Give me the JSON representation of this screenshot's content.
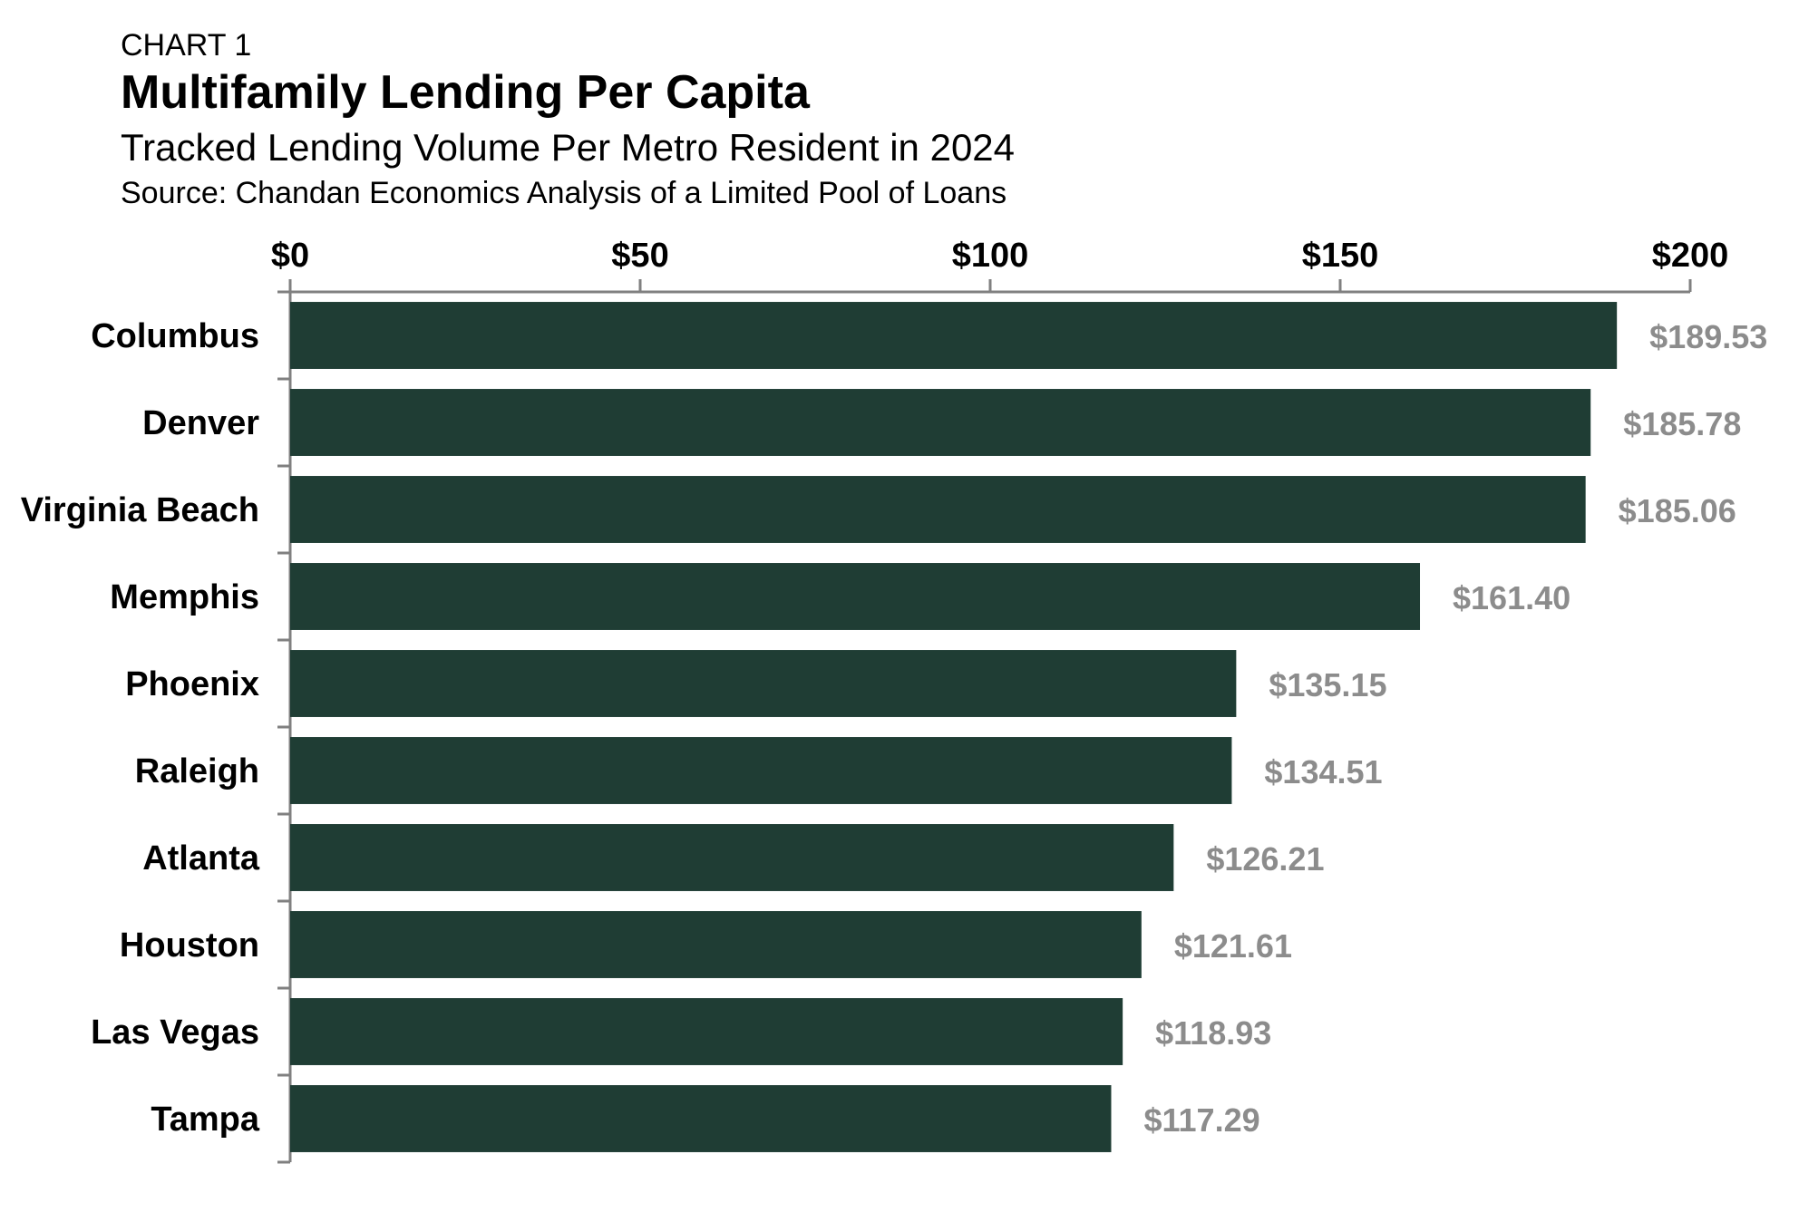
{
  "chart_label": "CHART 1",
  "colors": {
    "bar": "#1f3d34",
    "value_label": "#8c8c8c",
    "axis": "#808080"
  },
  "chart_data": {
    "type": "bar",
    "orientation": "horizontal",
    "title": "Multifamily Lending Per Capita",
    "subtitle": "Tracked Lending Volume Per Metro Resident in 2024",
    "source": "Source: Chandan Economics Analysis of a Limited Pool of Loans",
    "categories": [
      "Columbus",
      "Denver",
      "Virginia Beach",
      "Memphis",
      "Phoenix",
      "Raleigh",
      "Atlanta",
      "Houston",
      "Las Vegas",
      "Tampa"
    ],
    "values": [
      189.53,
      185.78,
      185.06,
      161.4,
      135.15,
      134.51,
      126.21,
      121.61,
      118.93,
      117.29
    ],
    "value_labels": [
      "$189.53",
      "$185.78",
      "$185.06",
      "$161.40",
      "$135.15",
      "$134.51",
      "$126.21",
      "$121.61",
      "$118.93",
      "$117.29"
    ],
    "x_ticks": [
      0,
      50,
      100,
      150,
      200
    ],
    "x_tick_labels": [
      "$0",
      "$50",
      "$100",
      "$150",
      "$200"
    ],
    "xlim": [
      0,
      200
    ],
    "x_axis_position": "top",
    "grid": false,
    "legend": "none",
    "xlabel": "",
    "ylabel": ""
  }
}
